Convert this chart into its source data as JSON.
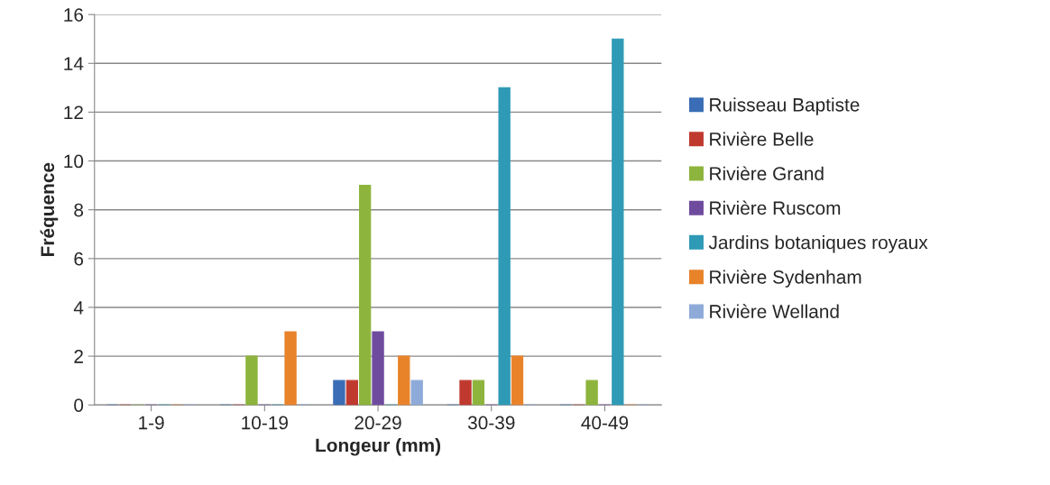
{
  "chart_data": {
    "type": "bar",
    "xlabel": "Longeur (mm)",
    "ylabel": "Fréquence",
    "categories": [
      "1-9",
      "10-19",
      "20-29",
      "30-39",
      "40-49"
    ],
    "series": [
      {
        "name": "Ruisseau Baptiste",
        "color": "#3a6db5",
        "values": [
          0,
          0,
          1,
          0,
          0
        ]
      },
      {
        "name": "Rivière Belle",
        "color": "#c0392f",
        "values": [
          0,
          0,
          1,
          1,
          0
        ]
      },
      {
        "name": "Rivière Grand",
        "color": "#8db43c",
        "values": [
          0,
          2,
          9,
          1,
          1
        ]
      },
      {
        "name": "Rivière Ruscom",
        "color": "#6f4b9e",
        "values": [
          0,
          0,
          3,
          0,
          0
        ]
      },
      {
        "name": "Jardins botaniques royaux",
        "color": "#2f9ab6",
        "values": [
          0,
          0,
          0,
          13,
          15
        ]
      },
      {
        "name": "Rivière Sydenham",
        "color": "#e8832a",
        "values": [
          0,
          3,
          2,
          2,
          0
        ]
      },
      {
        "name": "Rivière Welland",
        "color": "#8eaad9",
        "values": [
          0,
          0,
          1,
          0,
          0
        ]
      }
    ],
    "ylim": [
      0,
      16
    ],
    "yticks": [
      0,
      2,
      4,
      6,
      8,
      10,
      12,
      14,
      16
    ],
    "grid": "y",
    "legend": "right"
  }
}
